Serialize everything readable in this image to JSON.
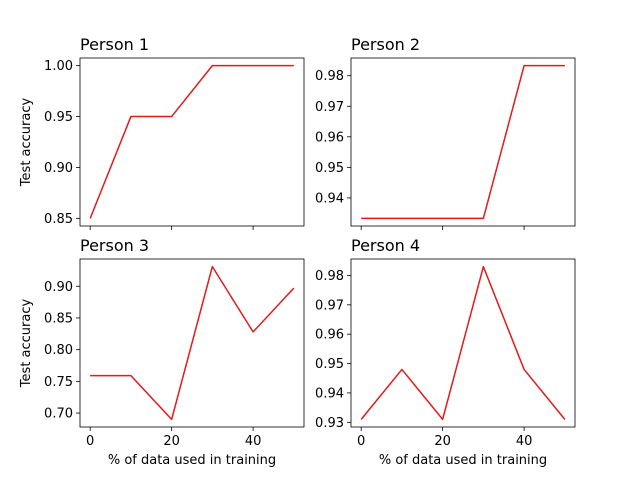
{
  "chart_data": [
    {
      "type": "line",
      "title": "Person 1",
      "xlabel": "",
      "ylabel": "Test accuracy",
      "color": "#e31a1c",
      "x": [
        0,
        10,
        20,
        30,
        40,
        50
      ],
      "y": [
        0.85,
        0.95,
        0.95,
        1.0,
        1.0,
        1.0
      ],
      "xlim": [
        -2.5,
        52.5
      ],
      "ylim": [
        0.8425,
        1.0075
      ],
      "xticks": [
        0,
        20,
        40
      ],
      "xtick_labels": [
        "",
        "",
        ""
      ],
      "yticks": [
        0.85,
        0.9,
        0.95,
        1.0
      ],
      "ytick_labels": [
        "0.85",
        "0.90",
        "0.95",
        "1.00"
      ]
    },
    {
      "type": "line",
      "title": "Person 2",
      "xlabel": "",
      "ylabel": "",
      "color": "#e31a1c",
      "x": [
        0,
        10,
        20,
        30,
        40,
        50
      ],
      "y": [
        0.9333,
        0.9333,
        0.9333,
        0.9333,
        0.9833,
        0.9833
      ],
      "xlim": [
        -2.5,
        52.5
      ],
      "ylim": [
        0.9308,
        0.9858
      ],
      "xticks": [
        0,
        20,
        40
      ],
      "xtick_labels": [
        "",
        "",
        ""
      ],
      "yticks": [
        0.94,
        0.95,
        0.96,
        0.97,
        0.98
      ],
      "ytick_labels": [
        "0.94",
        "0.95",
        "0.96",
        "0.97",
        "0.98"
      ]
    },
    {
      "type": "line",
      "title": "Person 3",
      "xlabel": "% of data used in training",
      "ylabel": "Test accuracy",
      "color": "#e31a1c",
      "x": [
        0,
        10,
        20,
        30,
        40,
        50
      ],
      "y": [
        0.759,
        0.759,
        0.69,
        0.931,
        0.828,
        0.897
      ],
      "xlim": [
        -2.5,
        52.5
      ],
      "ylim": [
        0.678,
        0.943
      ],
      "xticks": [
        0,
        20,
        40
      ],
      "xtick_labels": [
        "0",
        "20",
        "40"
      ],
      "yticks": [
        0.7,
        0.75,
        0.8,
        0.85,
        0.9
      ],
      "ytick_labels": [
        "0.70",
        "0.75",
        "0.80",
        "0.85",
        "0.90"
      ]
    },
    {
      "type": "line",
      "title": "Person 4",
      "xlabel": "% of data used in training",
      "ylabel": "",
      "color": "#e31a1c",
      "x": [
        0,
        10,
        20,
        30,
        40,
        50
      ],
      "y": [
        0.931,
        0.948,
        0.931,
        0.983,
        0.948,
        0.931
      ],
      "xlim": [
        -2.5,
        52.5
      ],
      "ylim": [
        0.9284,
        0.9856
      ],
      "xticks": [
        0,
        20,
        40
      ],
      "xtick_labels": [
        "0",
        "20",
        "40"
      ],
      "yticks": [
        0.93,
        0.94,
        0.95,
        0.96,
        0.97,
        0.98
      ],
      "ytick_labels": [
        "0.93",
        "0.94",
        "0.95",
        "0.96",
        "0.97",
        "0.98"
      ]
    }
  ]
}
